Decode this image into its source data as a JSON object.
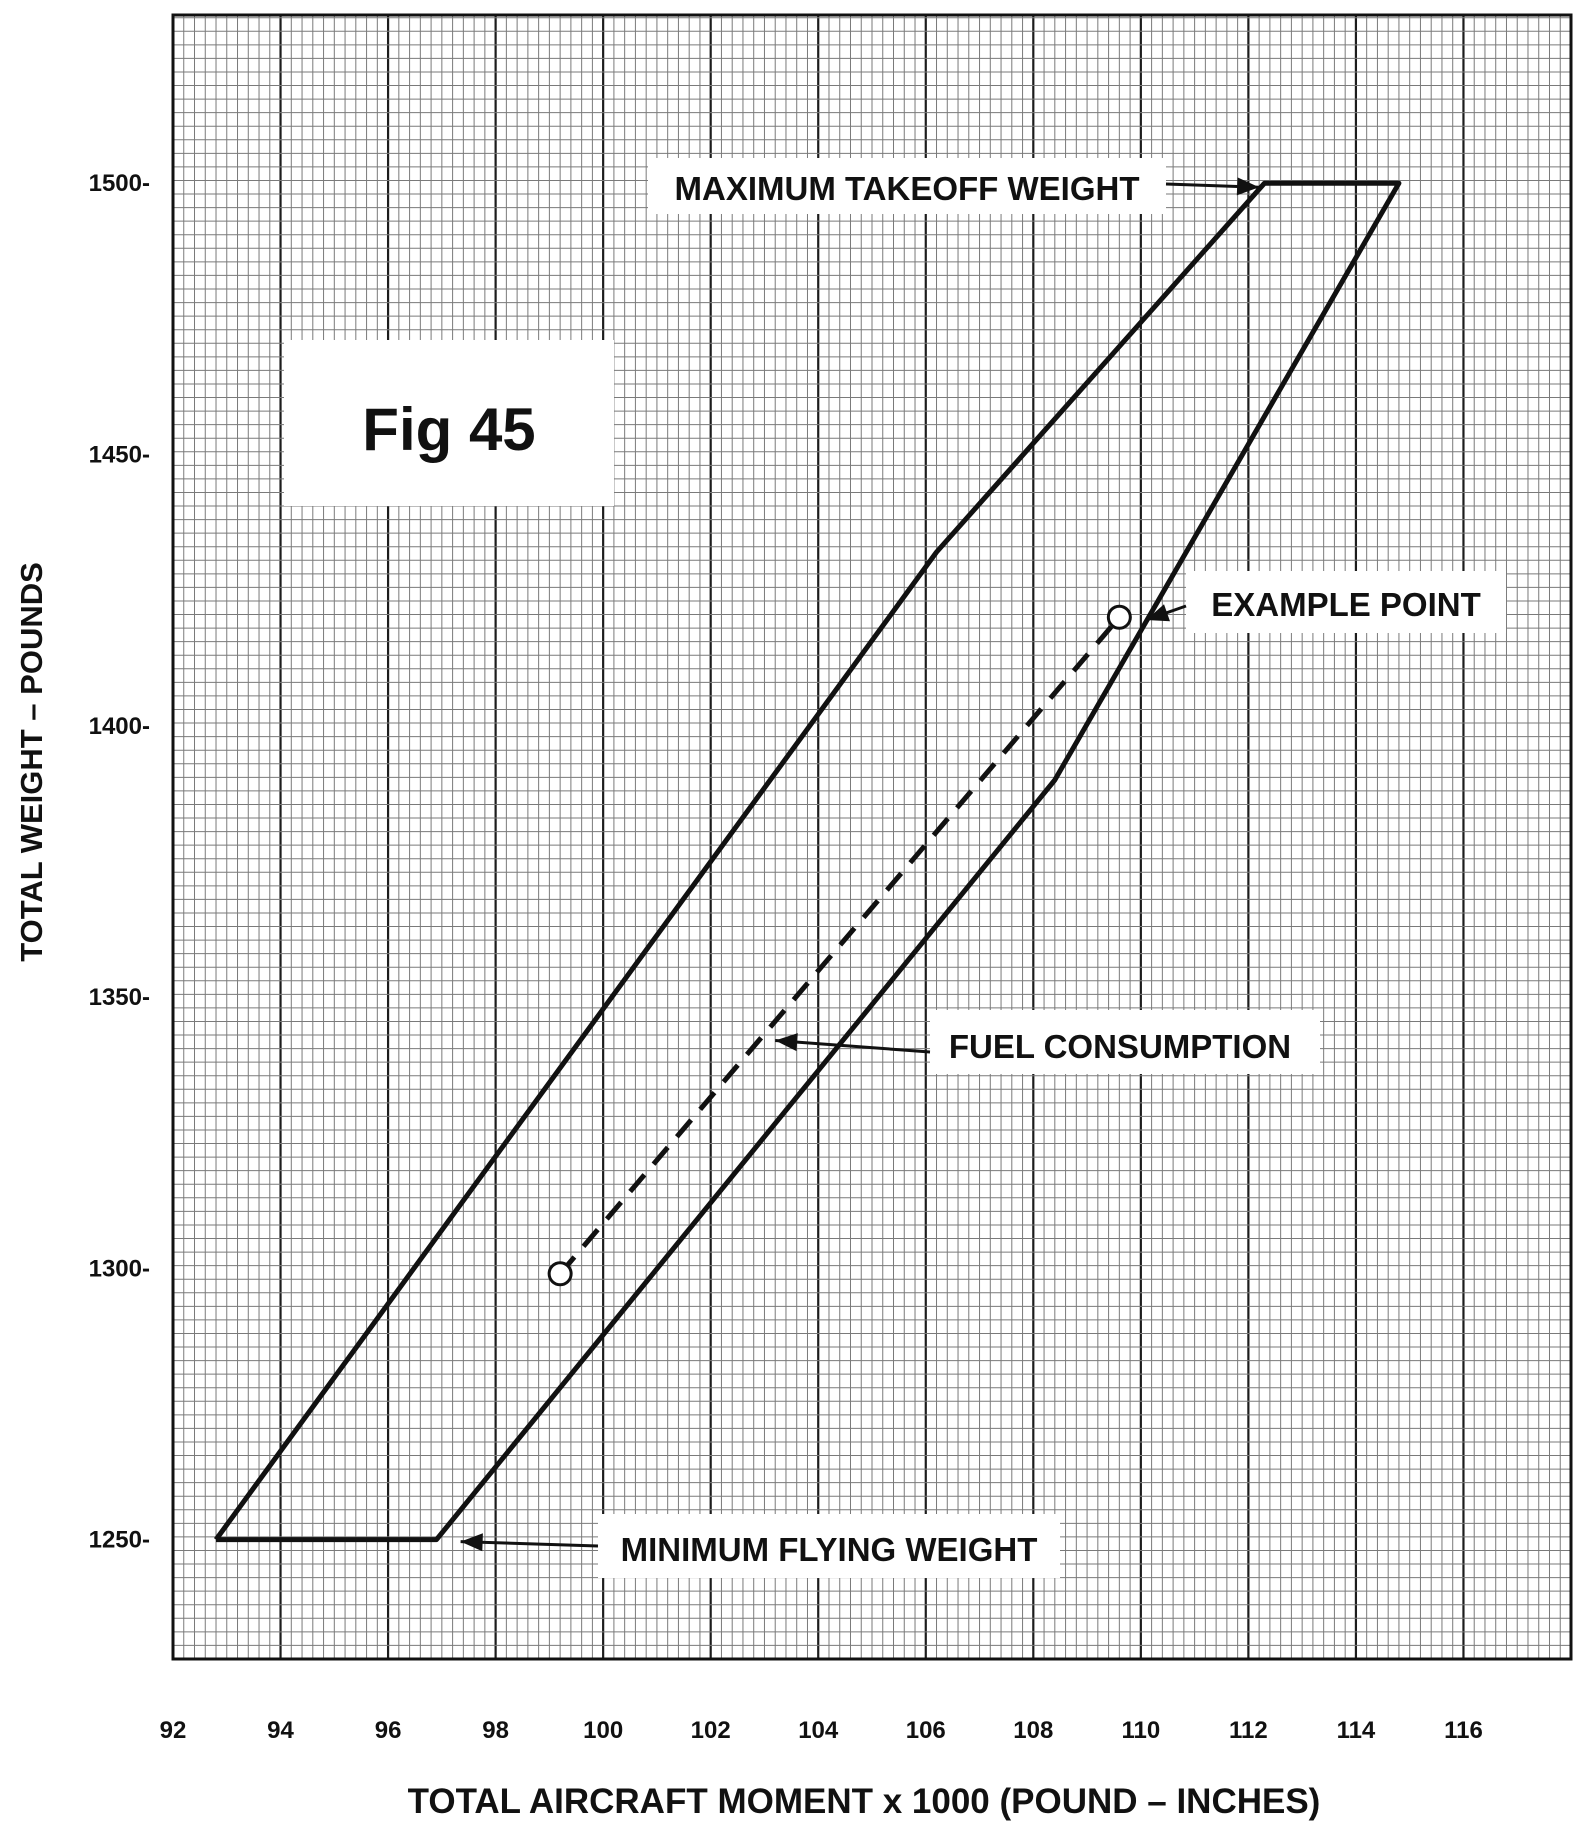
{
  "chart_data": {
    "type": "line",
    "title": "",
    "figure_label": "Fig 45",
    "xlabel": "TOTAL AIRCRAFT MOMENT x 1000 (POUND – INCHES)",
    "ylabel": "TOTAL WEIGHT – POUNDS",
    "xlim": [
      92,
      118
    ],
    "ylim": [
      1228,
      1531
    ],
    "x_ticks": [
      {
        "value": 92,
        "label": "92"
      },
      {
        "value": 94,
        "label": "94"
      },
      {
        "value": 96,
        "label": "96"
      },
      {
        "value": 98,
        "label": "98"
      },
      {
        "value": 100,
        "label": "100"
      },
      {
        "value": 102,
        "label": "102"
      },
      {
        "value": 104,
        "label": "104"
      },
      {
        "value": 106,
        "label": "106"
      },
      {
        "value": 108,
        "label": "108"
      },
      {
        "value": 110,
        "label": "110"
      },
      {
        "value": 112,
        "label": "112"
      },
      {
        "value": 114,
        "label": "114"
      },
      {
        "value": 116,
        "label": "116"
      }
    ],
    "y_ticks": [
      {
        "value": 1250,
        "label": "1250-"
      },
      {
        "value": 1300,
        "label": "1300-"
      },
      {
        "value": 1350,
        "label": "1350-"
      },
      {
        "value": 1400,
        "label": "1400-"
      },
      {
        "value": 1450,
        "label": "1450-"
      },
      {
        "value": 1500,
        "label": "1500-"
      }
    ],
    "grid": true,
    "grid_minor_x": 0.2,
    "grid_minor_y": 2.5,
    "grid_major_x": 2,
    "grid_major_y": 10,
    "envelope": {
      "points": [
        {
          "x": 92.8,
          "y": 1250
        },
        {
          "x": 96.9,
          "y": 1250
        },
        {
          "x": 108.4,
          "y": 1390
        },
        {
          "x": 114.8,
          "y": 1500
        },
        {
          "x": 112.3,
          "y": 1500
        },
        {
          "x": 106.2,
          "y": 1432
        },
        {
          "x": 92.8,
          "y": 1250
        }
      ]
    },
    "fuel_consumption_line": {
      "points": [
        {
          "x": 99.2,
          "y": 1299
        },
        {
          "x": 109.6,
          "y": 1420
        }
      ],
      "dashed": true
    },
    "markers": [
      {
        "x": 99.2,
        "y": 1299,
        "shape": "open-circle"
      },
      {
        "x": 109.6,
        "y": 1420,
        "shape": "open-circle"
      }
    ],
    "annotations": [
      {
        "text": "MAXIMUM TAKEOFF WEIGHT",
        "target": {
          "x": 112.2,
          "y": 1500
        }
      },
      {
        "text": "EXAMPLE POINT",
        "target": {
          "x": 110.1,
          "y": 1419.5
        }
      },
      {
        "text": "FUEL CONSUMPTION",
        "target": {
          "x": 103.2,
          "y": 1342
        }
      },
      {
        "text": "MINIMUM FLYING WEIGHT",
        "target": {
          "x": 97.2,
          "y": 1250
        }
      }
    ],
    "colors": {
      "background": "#ffffff",
      "grid_minor": "#7a7a7a",
      "grid_major": "#1c1c1c",
      "line": "#111111"
    }
  }
}
